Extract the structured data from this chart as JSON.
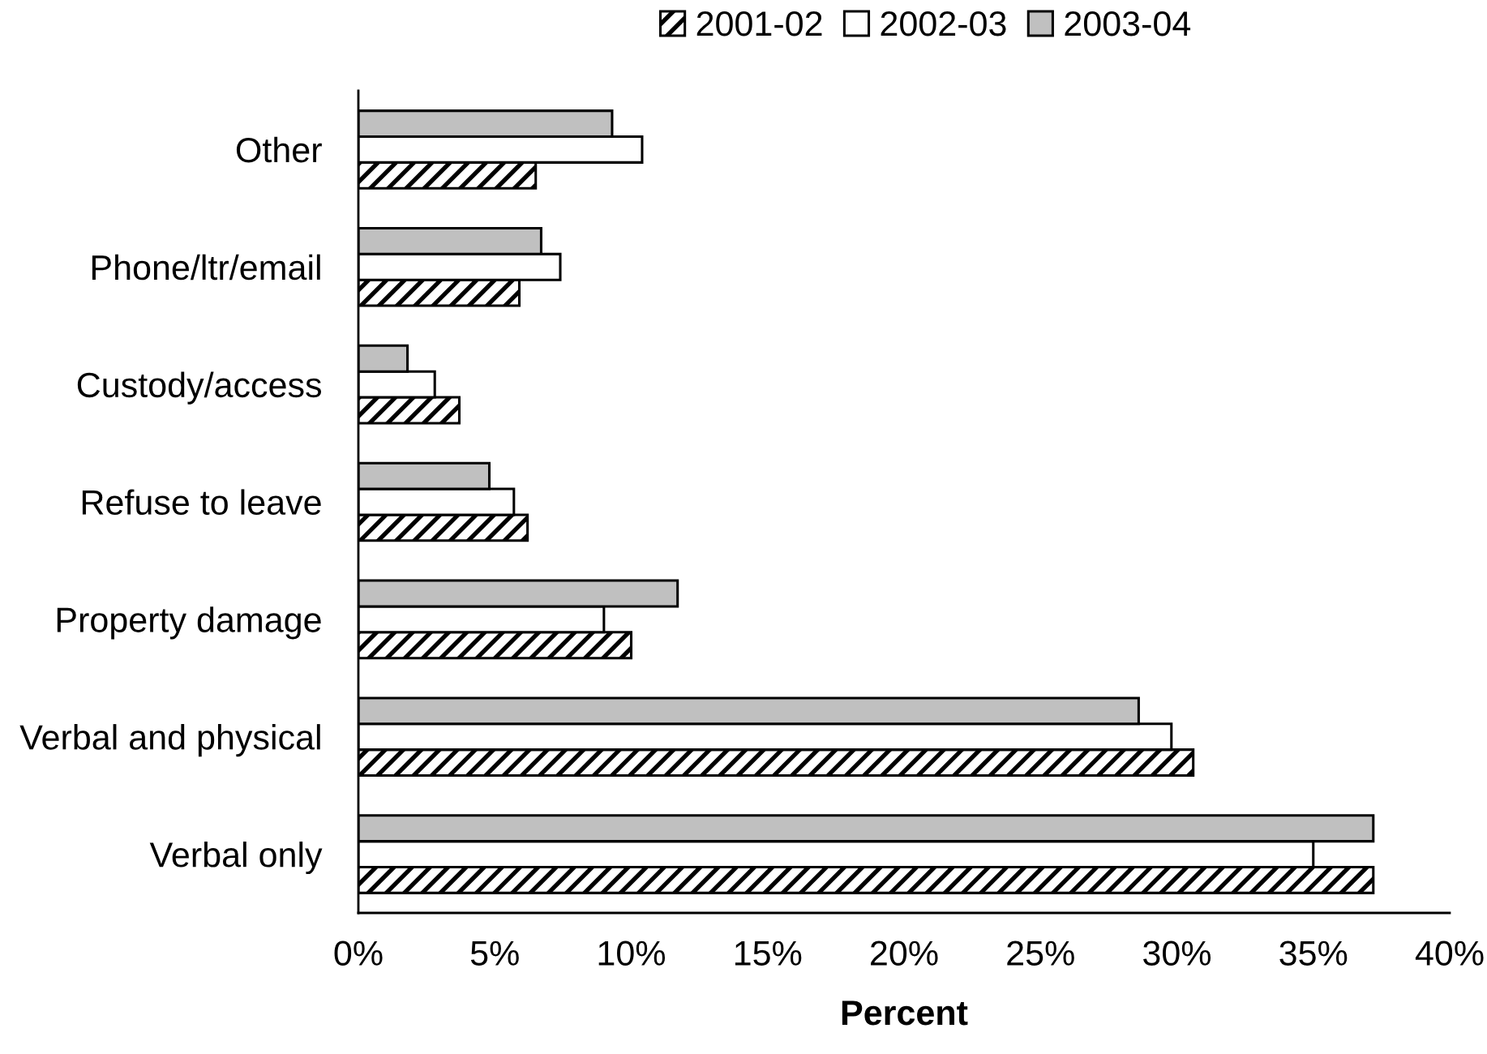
{
  "chart_data": {
    "type": "bar",
    "orientation": "horizontal",
    "xlabel": "Percent",
    "categories": [
      "Other",
      "Phone/ltr/email",
      "Custody/access",
      "Refuse to leave",
      "Property damage",
      "Verbal and physical",
      "Verbal only"
    ],
    "series": [
      {
        "name": "2003-04",
        "color": "#c0c0c0",
        "values": [
          9.3,
          6.7,
          1.8,
          4.8,
          11.7,
          28.6,
          37.2
        ]
      },
      {
        "name": "2002-03",
        "color": "#ffffff",
        "values": [
          10.4,
          7.4,
          2.8,
          5.7,
          9.0,
          29.8,
          35.0
        ]
      },
      {
        "name": "2001-02",
        "color": "#000000",
        "values": [
          6.5,
          5.9,
          3.7,
          6.2,
          10.0,
          30.6,
          37.2
        ]
      }
    ],
    "xlim": [
      0,
      40
    ],
    "xticks": [
      {
        "value": 0,
        "label": "0%"
      },
      {
        "value": 5,
        "label": "5%"
      },
      {
        "value": 10,
        "label": "10%"
      },
      {
        "value": 15,
        "label": "15%"
      },
      {
        "value": 20,
        "label": "20%"
      },
      {
        "value": 25,
        "label": "25%"
      },
      {
        "value": 30,
        "label": "30%"
      },
      {
        "value": 35,
        "label": "35%"
      },
      {
        "value": 40,
        "label": "40%"
      }
    ],
    "legend": "top",
    "grid": false
  }
}
